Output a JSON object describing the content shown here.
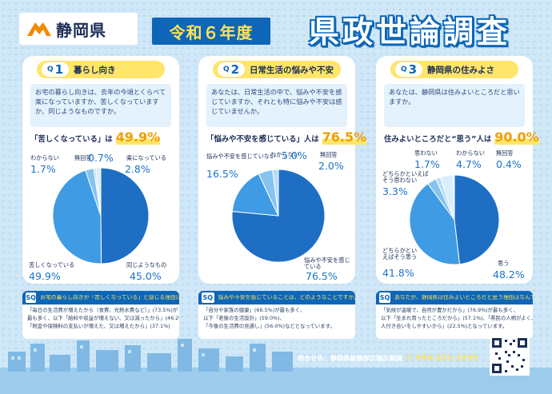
{
  "header": {
    "prefecture": "静岡県",
    "year_badge": "令和６年度",
    "title": "県政世論調査"
  },
  "questions": [
    {
      "letter": "Q",
      "number": "1",
      "title": "暮らし向き",
      "text": "お宅の暮らし向きは、去年の今頃とくらべて楽になっていますか、苦しくなっていますか、同じようなものですか。",
      "result_label": "「苦しくなっている」は",
      "result_value": "49.9%",
      "labels": {
        "a_label": "わからない",
        "a_value": "1.7%",
        "b_label": "無回答",
        "b_value": "0.7%",
        "c_label": "楽になっている",
        "c_value": "2.8%",
        "d_label": "苦しくなっている",
        "d_value": "49.9%",
        "e_label": "同じようなもの",
        "e_value": "45.0%"
      }
    },
    {
      "letter": "Q",
      "number": "2",
      "title": "日常生活の悩みや不安",
      "text": "あなたは、日常生活の中で、悩みや不安を感じていますか、それとも特に悩みや不安は感じていませんか。",
      "result_label": "「悩みや不安を感じている」人は",
      "result_value": "76.5%",
      "labels": {
        "a_label": "悩みや不安を感じていない",
        "a_value": "16.5%",
        "b_label": "わからない",
        "b_value": "5.0%",
        "c_label": "無回答",
        "c_value": "2.0%",
        "d_label": "悩みや不安を感じている",
        "d_value": "76.5%"
      }
    },
    {
      "letter": "Q",
      "number": "3",
      "title": "静岡県の住みよさ",
      "text": "あなたは、静岡県は住みよいところだと思いますか。",
      "result_label": "住みよいところだと“思う”人は",
      "result_value": "90.0%",
      "labels": {
        "a_label": "思わない",
        "a_value": "1.7%",
        "b_label": "わからない",
        "b_value": "4.7%",
        "c_label": "無回答",
        "c_value": "0.4%",
        "d_label": "どちらかといえばそう思わない",
        "d_value": "3.3%",
        "e_label": "どちらかといえばそう思う",
        "e_value": "41.8%",
        "f_label": "思う",
        "f_value": "48.2%"
      }
    }
  ],
  "chart_data": [
    {
      "type": "pie",
      "title": "暮らし向き",
      "labels": [
        "苦しくなっている",
        "同じようなもの",
        "楽になっている",
        "無回答",
        "わからない"
      ],
      "values": [
        49.9,
        45.0,
        2.8,
        0.7,
        1.7
      ]
    },
    {
      "type": "pie",
      "title": "日常生活の悩みや不安",
      "labels": [
        "悩みや不安を感じている",
        "悩みや不安を感じていない",
        "わからない",
        "無回答"
      ],
      "values": [
        76.5,
        16.5,
        5.0,
        2.0
      ]
    },
    {
      "type": "pie",
      "title": "静岡県の住みよさ",
      "labels": [
        "思う",
        "どちらかといえばそう思う",
        "どちらかといえばそう思わない",
        "思わない",
        "わからない",
        "無回答"
      ],
      "values": [
        48.2,
        41.8,
        3.3,
        1.7,
        4.7,
        0.4
      ]
    }
  ],
  "colors": [
    "#1e6fc4",
    "#3f9be3",
    "#86c3ef",
    "#b8dcf6",
    "#d9eefb",
    "#edf6fd"
  ],
  "sq": [
    {
      "badge": "SQ",
      "question": "お宅の暮らし向きが「苦しくなっている」と感じる理由は何ですか。",
      "lines": [
        "「毎日の生活費が増えたから（食費、光熱水費など）」(73.5%)が",
        "最も多く、以下「給料や収益が増えない、又は減ったから」(46.2%)、",
        "「税金や保険料の支払いが増えた、又は増えたから」(37.1%)"
      ]
    },
    {
      "badge": "SQ",
      "question": "悩みや不安を感じていることは、どのようなことですか。",
      "lines": [
        "「自分や家族の健康」(66.5%)が最も多く、",
        "以下「老後の生活設計」(59.0%)、",
        "「今後の生活費の見通し」(56.0%)などとなっています。"
      ]
    },
    {
      "badge": "SQ",
      "question": "あなたが、静岡県は住みよいところだと思う理由はなんですか。",
      "lines": [
        "「気候が温暖で、自然が豊かだから」(76.9%)が最も多く、",
        "以下「生まれ育ったところだから」(57.1%)、「県民の人柄がよく、",
        "人付き合いをしやすいから」(22.5%)となっています。"
      ]
    }
  ],
  "footer": {
    "contact": "問合せ先：静岡県総務部広聴広報課",
    "phone": "054-221-2235"
  }
}
